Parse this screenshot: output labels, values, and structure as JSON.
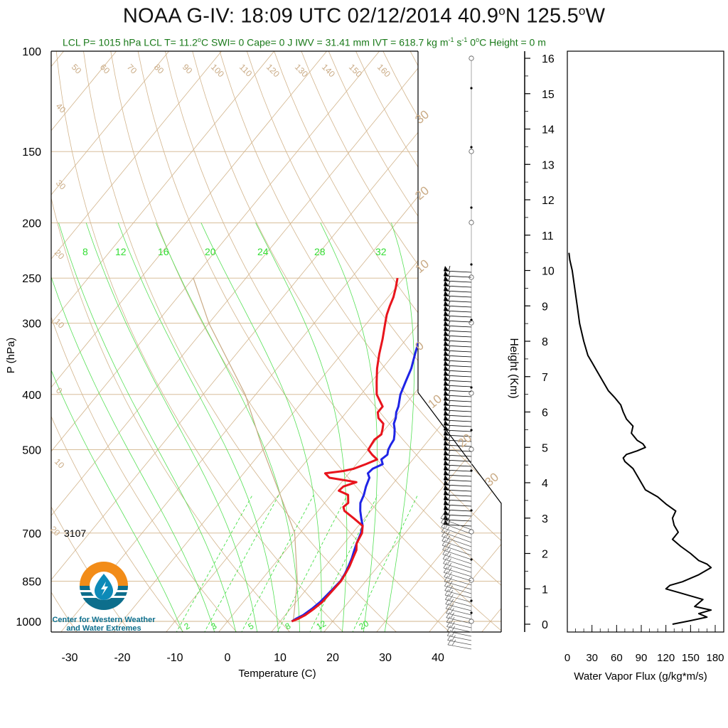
{
  "header": {
    "title_part1": "NOAA G-IV: 18:09 UTC 02/12/2014  40.9",
    "title_deg1": "o",
    "title_part2": "N 125.5",
    "title_deg2": "o",
    "title_part3": "W",
    "stats_a": "LCL P= 1015 hPa  LCL T= 11.2",
    "stats_deg_a": "o",
    "stats_b": "C  SWI= 0  Cape= 0 J  IWV = 31.41 mm  IVT = 618.7 kg m",
    "stats_exp1": "-1",
    "stats_c": " s",
    "stats_exp2": "-1",
    "stats_d": "  0",
    "stats_deg_b": "o",
    "stats_e": "C Height = 0 m"
  },
  "logo": {
    "line1": "Center for Western Weather",
    "line2": "and Water Extremes"
  },
  "chart_data": [
    {
      "type": "line",
      "title": "NOAA G-IV: 18:09 UTC 02/12/2014 40.9°N 125.5°W",
      "subtitle_note": "Skew-T log-P sounding",
      "xlabel": "Temperature (C)",
      "ylabel": "P (hPa)",
      "x_ticks": [
        "-30",
        "-20",
        "-10",
        "0",
        "10",
        "20",
        "30",
        "40"
      ],
      "y_ticks": [
        "100",
        "150",
        "200",
        "250",
        "300",
        "400",
        "500",
        "700",
        "850",
        "1000"
      ],
      "annotation_height_label": "3107",
      "mixing_ratio_top_labels": [
        "8",
        "12",
        "16",
        "20",
        "24",
        "28",
        "32"
      ],
      "mixing_ratio_bottom_labels": [
        "2",
        "3",
        "5",
        "8",
        "12",
        "20"
      ],
      "adiabat_top_labels": [
        "50",
        "60",
        "70",
        "80",
        "90",
        "100",
        "110",
        "120",
        "130",
        "140",
        "150",
        "160"
      ],
      "colors": {
        "temperature": "#e8141c",
        "dewpoint": "#1f24e6",
        "parcel": "#c9aa84",
        "grid": "#d2b48c",
        "mixing_ratio": "#33dd33",
        "stats_text": "#1a7a1a"
      },
      "series": [
        {
          "name": "temperature",
          "pressure_hPa": [
            1000,
            990,
            975,
            950,
            925,
            900,
            875,
            850,
            825,
            800,
            775,
            750,
            730,
            700,
            680,
            660,
            640,
            630,
            620,
            600,
            590,
            580,
            570,
            560,
            550,
            545,
            540,
            530,
            520,
            510,
            500,
            490,
            480,
            470,
            460,
            450,
            440,
            430,
            420,
            400,
            380,
            360,
            340,
            320,
            300,
            290,
            280,
            270,
            260,
            250
          ],
          "temp_C": [
            12.2,
            13.0,
            13.8,
            14.5,
            15.0,
            15.1,
            15.2,
            15.3,
            15.0,
            14.6,
            14.0,
            13.4,
            12.4,
            11.8,
            10.8,
            8.0,
            5.0,
            4.2,
            4.5,
            3.2,
            0.8,
            1.0,
            2.8,
            -3.0,
            -4.5,
            -1.5,
            0.2,
            1.8,
            3.2,
            1.5,
            0.0,
            -0.2,
            -0.4,
            0.1,
            -0.5,
            -1.2,
            -3.0,
            -4.0,
            -4.0,
            -7.0,
            -9.0,
            -11.0,
            -12.8,
            -14.5,
            -16.5,
            -17.5,
            -18.3,
            -19.0,
            -20.0,
            -21.2
          ]
        },
        {
          "name": "dewpoint",
          "pressure_hPa": [
            1000,
            990,
            975,
            950,
            925,
            900,
            875,
            850,
            825,
            800,
            775,
            750,
            730,
            700,
            680,
            660,
            640,
            620,
            600,
            580,
            560,
            550,
            540,
            530,
            520,
            510,
            500,
            490,
            480,
            470,
            460,
            450,
            440,
            430,
            420,
            400,
            380,
            360,
            340,
            320,
            300,
            290,
            280,
            270,
            260,
            250
          ],
          "temp_C": [
            12.2,
            12.6,
            13.4,
            14.1,
            14.6,
            14.8,
            15.0,
            15.2,
            14.9,
            14.4,
            13.8,
            13.0,
            12.4,
            11.6,
            10.8,
            9.4,
            8.0,
            6.8,
            6.2,
            5.3,
            4.6,
            3.6,
            3.8,
            5.0,
            4.0,
            4.4,
            3.8,
            3.5,
            3.3,
            2.6,
            1.8,
            0.8,
            0.3,
            -0.5,
            -1.0,
            -2.5,
            -3.5,
            -4.5,
            -6.0,
            -7.5,
            -9.5,
            -10.5,
            -11.5,
            -12.3,
            -13.2,
            -13.8
          ]
        },
        {
          "name": "parcel",
          "pressure_hPa": [
            1000,
            850,
            700,
            500,
            400,
            300,
            250
          ],
          "temp_C": [
            12.5,
            7.0,
            -1.0,
            -20.0,
            -32.0,
            -50.0,
            -60.0
          ]
        }
      ]
    },
    {
      "type": "line",
      "xlabel": "Water Vapor Flux (g/kg*m/s)",
      "ylabel": "Height (Km)",
      "x_ticks": [
        "0",
        "30",
        "60",
        "90",
        "120",
        "150",
        "180"
      ],
      "y_ticks": [
        "0",
        "1",
        "2",
        "3",
        "4",
        "5",
        "6",
        "7",
        "8",
        "9",
        "10",
        "11",
        "12",
        "13",
        "14",
        "15",
        "16"
      ],
      "xlim": [
        0,
        180
      ],
      "ylim": [
        0,
        16.5
      ],
      "series": [
        {
          "name": "water_vapor_flux",
          "height_km": [
            0.0,
            0.1,
            0.2,
            0.3,
            0.4,
            0.5,
            0.6,
            0.7,
            0.8,
            0.9,
            1.0,
            1.1,
            1.2,
            1.4,
            1.6,
            1.7,
            1.8,
            2.0,
            2.2,
            2.4,
            2.6,
            2.8,
            3.0,
            3.2,
            3.4,
            3.6,
            3.8,
            4.0,
            4.2,
            4.4,
            4.6,
            4.7,
            4.8,
            4.9,
            5.0,
            5.1,
            5.2,
            5.4,
            5.6,
            5.8,
            6.0,
            6.2,
            6.4,
            6.6,
            6.8,
            7.0,
            7.2,
            7.4,
            7.6,
            8.0,
            8.5,
            9.0,
            9.5,
            10.0,
            10.3,
            10.5
          ],
          "flux": [
            128,
            150,
            170,
            160,
            175,
            155,
            160,
            165,
            150,
            135,
            120,
            125,
            140,
            160,
            175,
            170,
            160,
            150,
            138,
            128,
            135,
            130,
            128,
            132,
            120,
            110,
            95,
            90,
            85,
            80,
            70,
            68,
            72,
            85,
            95,
            92,
            85,
            78,
            80,
            72,
            68,
            65,
            58,
            50,
            45,
            40,
            35,
            30,
            25,
            20,
            15,
            12,
            9,
            6,
            3,
            2
          ]
        }
      ]
    }
  ]
}
